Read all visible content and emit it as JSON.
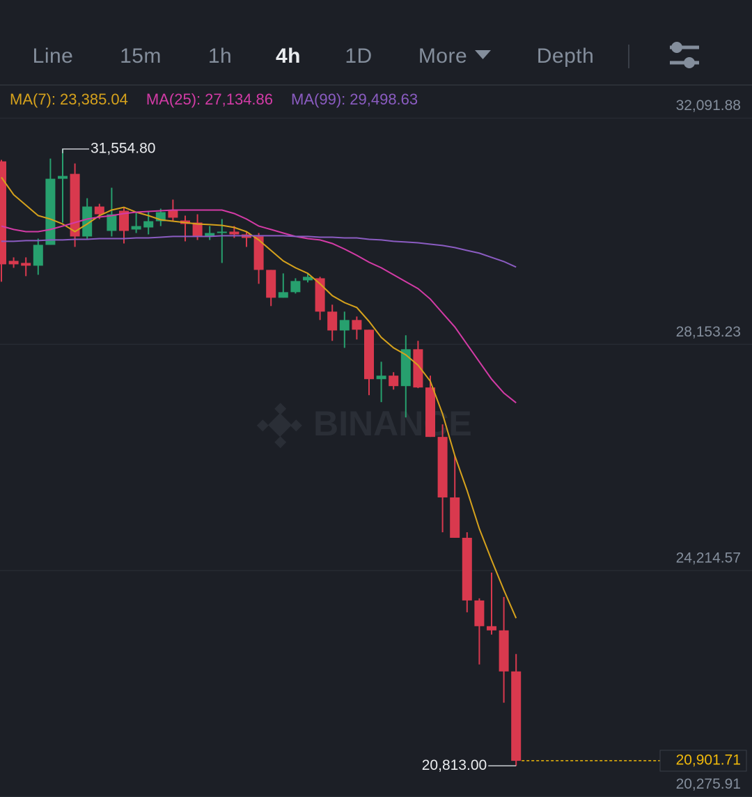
{
  "tabs": {
    "items": [
      "Line",
      "15m",
      "1h",
      "4h",
      "1D",
      "More",
      "Depth"
    ],
    "active": 3
  },
  "chart_data": {
    "type": "candlestick",
    "watermark": "BINANCE",
    "ylim": [
      20270,
      32670
    ],
    "yticks": [
      {
        "value": 32091.88,
        "label": "32,091.88"
      },
      {
        "value": 28153.23,
        "label": "28,153.23"
      },
      {
        "value": 24214.57,
        "label": "24,214.57"
      },
      {
        "value": 20275.91,
        "label": "20,275.91"
      }
    ],
    "grid": true,
    "up_color": "#27a06e",
    "down_color": "#d9394e",
    "open": [
      31340,
      29607,
      29571,
      29523,
      29886,
      31037,
      31122,
      30032,
      30553,
      30129,
      30480,
      30153,
      30189,
      30298,
      30480,
      30310,
      30274,
      30032,
      30092,
      30116,
      30068,
      30032,
      29450,
      28965,
      29062,
      29268,
      29304,
      28723,
      28395,
      28577,
      28408,
      27547,
      27608,
      27426,
      28068,
      27402,
      26541,
      25487,
      24784,
      23693,
      23245,
      23172,
      22457
    ],
    "high": [
      31365,
      29668,
      29668,
      29995,
      31389,
      31554.8,
      31304,
      30698,
      30601,
      30880,
      30541,
      30456,
      30456,
      30516,
      30674,
      30395,
      30419,
      30213,
      30335,
      30213,
      30116,
      30092,
      29450,
      29389,
      29304,
      29389,
      29329,
      28844,
      28723,
      28638,
      28408,
      27850,
      27668,
      28311,
      28214,
      27608,
      26759,
      26214,
      24881,
      23730,
      24178,
      23754,
      22760
    ],
    "low": [
      29244,
      29486,
      29341,
      29365,
      29886,
      30274,
      29850,
      29995,
      30335,
      30032,
      29910,
      30092,
      30068,
      30213,
      30298,
      29947,
      29971,
      29971,
      29571,
      30007,
      29850,
      29207,
      28820,
      28965,
      29038,
      29232,
      28577,
      28214,
      28092,
      28238,
      27268,
      27147,
      27365,
      26881,
      27390,
      26541,
      24881,
      24784,
      23487,
      22578,
      23099,
      21912,
      20813.0
    ],
    "close": [
      29547,
      29547,
      29523,
      29886,
      31037,
      31086,
      30032,
      30553,
      30419,
      30419,
      30129,
      30213,
      30298,
      30456,
      30359,
      30250,
      30032,
      30092,
      30116,
      30068,
      30007,
      29450,
      28965,
      29062,
      29256,
      29329,
      28723,
      28395,
      28577,
      28408,
      27547,
      27608,
      27426,
      28068,
      27402,
      26541,
      25487,
      24784,
      23693,
      23245,
      23172,
      22457,
      20900
    ],
    "series": [
      {
        "name": "MA(7)",
        "color": "#d6a21c",
        "last_label": "23,385.04",
        "values": [
          31062,
          30759,
          30577,
          30395,
          30335,
          30250,
          30116,
          30250,
          30395,
          30492,
          30541,
          30456,
          30395,
          30322,
          30298,
          30274,
          30250,
          30238,
          30225,
          30189,
          30116,
          29971,
          29789,
          29607,
          29486,
          29389,
          29207,
          29001,
          28880,
          28795,
          28553,
          28274,
          28092,
          27971,
          27790,
          27511,
          26941,
          26214,
          25608,
          24942,
          24396,
          23875,
          23385.04
        ]
      },
      {
        "name": "MA(25)",
        "color": "#d33ba6",
        "last_label": "27,134.86",
        "values": [
          30213,
          30153,
          30116,
          30116,
          30153,
          30213,
          30274,
          30335,
          30371,
          30395,
          30431,
          30456,
          30468,
          30480,
          30492,
          30492,
          30492,
          30492,
          30492,
          30431,
          30335,
          30213,
          30153,
          30092,
          30032,
          29995,
          29971,
          29910,
          29813,
          29704,
          29583,
          29486,
          29365,
          29244,
          29123,
          28941,
          28698,
          28456,
          28153,
          27850,
          27547,
          27305,
          27134.86
        ]
      },
      {
        "name": "MA(99)",
        "color": "#8b5cc2",
        "last_label": "29,498.63",
        "values": [
          29947,
          29947,
          29959,
          29959,
          29971,
          29971,
          29983,
          29983,
          29995,
          29995,
          29995,
          30007,
          30007,
          30019,
          30032,
          30032,
          30032,
          30032,
          30044,
          30044,
          30044,
          30044,
          30044,
          30044,
          30032,
          30032,
          30019,
          30019,
          30007,
          30007,
          29983,
          29971,
          29947,
          29935,
          29922,
          29898,
          29874,
          29838,
          29789,
          29741,
          29668,
          29595,
          29498.63
        ]
      }
    ],
    "high_marker": {
      "index": 5,
      "value": 31554.8,
      "label": "31,554.80"
    },
    "low_marker": {
      "index": 42,
      "value": 20813.0,
      "label": "20,813.00"
    },
    "last_price": {
      "value": 20901.71,
      "label": "20,901.71",
      "color": "#f0b90b"
    }
  }
}
